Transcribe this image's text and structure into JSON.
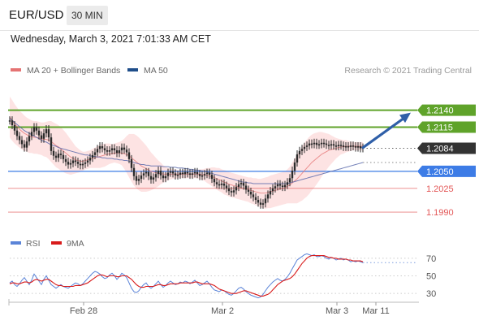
{
  "header": {
    "pair": "EUR/USD",
    "timeframe": "30 MIN",
    "timestamp": "Wednesday, March 3, 2021 7:01:33 AM CET"
  },
  "colors": {
    "price": "#2b2b2b",
    "ma20": "#e57373",
    "bollinger_fill": "#fde3e3",
    "ma50": "#5263a8",
    "resistance": "#5fa32a",
    "current_badge": "#333333",
    "support_blue": "#3d7ce6",
    "support_red": "#e35757",
    "arrow": "#2f5fa8",
    "rsi": "#5b84d8",
    "rsi_ma": "#d81b1b",
    "grid_dots": "#cccccc"
  },
  "chart_data": [
    {
      "type": "line",
      "panel": "price",
      "legend": [
        {
          "name": "MA 20 + Bollinger Bands",
          "color": "#e57373"
        },
        {
          "name": "MA 50",
          "color": "#1f4e8a"
        }
      ],
      "credit": "Research © 2021 Trading Central",
      "legend_position": "top",
      "x_ticks": [
        {
          "label": "Feb 28",
          "index": 30
        },
        {
          "label": "Mar 2",
          "index": 87
        },
        {
          "label": "Mar 3",
          "index": 134
        },
        {
          "label": "Mar 11",
          "index": 150
        }
      ],
      "ylim": [
        1.1965,
        1.2185
      ],
      "price": [
        1.2125,
        1.2118,
        1.211,
        1.2102,
        1.2096,
        1.209,
        1.2085,
        1.2094,
        1.2102,
        1.2108,
        1.2115,
        1.211,
        1.2103,
        1.2098,
        1.2106,
        1.2112,
        1.21,
        1.208,
        1.2073,
        1.207,
        1.2076,
        1.2074,
        1.2068,
        1.2064,
        1.206,
        1.2062,
        1.2066,
        1.2064,
        1.2061,
        1.2059,
        1.2061,
        1.2063,
        1.2066,
        1.207,
        1.2074,
        1.2078,
        1.2083,
        1.2087,
        1.2084,
        1.2081,
        1.2079,
        1.2081,
        1.2084,
        1.2081,
        1.2077,
        1.2081,
        1.2085,
        1.2082,
        1.2078,
        1.2068,
        1.2055,
        1.2043,
        1.2036,
        1.2039,
        1.2044,
        1.2047,
        1.2049,
        1.2043,
        1.2038,
        1.2041,
        1.2046,
        1.2051,
        1.2044,
        1.204,
        1.2043,
        1.2048,
        1.205,
        1.2047,
        1.2044,
        1.2045,
        1.2048,
        1.2046,
        1.2049,
        1.2047,
        1.2045,
        1.2047,
        1.2049,
        1.2046,
        1.2043,
        1.2044,
        1.2046,
        1.2048,
        1.2045,
        1.2039,
        1.2034,
        1.2031,
        1.203,
        1.2032,
        1.2029,
        1.2025,
        1.2021,
        1.2019,
        1.2022,
        1.2027,
        1.2031,
        1.2033,
        1.2029,
        1.2023,
        1.202,
        1.2016,
        1.2012,
        1.2008,
        1.2004,
        1.2001,
        1.2003,
        1.201,
        1.2016,
        1.2021,
        1.2025,
        1.2028,
        1.2031,
        1.2029,
        1.2027,
        1.203,
        1.2034,
        1.204,
        1.2051,
        1.2063,
        1.2075,
        1.208,
        1.2083,
        1.2086,
        1.2088,
        1.2091,
        1.209,
        1.2092,
        1.2089,
        1.209,
        1.2092,
        1.2091,
        1.2089,
        1.2088,
        1.209,
        1.2088,
        1.2087,
        1.2089,
        1.2088,
        1.2086,
        1.2087,
        1.2086,
        1.2088,
        1.2087,
        1.2085,
        1.2087,
        1.2084,
        1.2085
      ],
      "ma20": [
        1.213,
        1.2125,
        1.212,
        1.2116,
        1.2112,
        1.2109,
        1.2106,
        1.2104,
        1.2102,
        1.2101,
        1.21,
        1.21,
        1.2099,
        1.2098,
        1.2097,
        1.2097,
        1.2096,
        1.2094,
        1.2091,
        1.2088,
        1.2086,
        1.2083,
        1.208,
        1.2077,
        1.2074,
        1.2071,
        1.2069,
        1.2067,
        1.2066,
        1.2065,
        1.2065,
        1.2066,
        1.2067,
        1.2068,
        1.2069,
        1.207,
        1.2071,
        1.2072,
        1.2073,
        1.2074,
        1.2075,
        1.2076,
        1.2076,
        1.2077,
        1.2077,
        1.2077,
        1.2077,
        1.2076,
        1.2075,
        1.2073,
        1.207,
        1.2067,
        1.2064,
        1.2061,
        1.2058,
        1.2056,
        1.2054,
        1.2052,
        1.205,
        1.2049,
        1.2048,
        1.2047,
        1.2047,
        1.2046,
        1.2046,
        1.2046,
        1.2046,
        1.2046,
        1.2046,
        1.2046,
        1.2046,
        1.2046,
        1.2046,
        1.2046,
        1.2046,
        1.2046,
        1.2046,
        1.2046,
        1.2046,
        1.2045,
        1.2045,
        1.2044,
        1.2043,
        1.2042,
        1.2041,
        1.2039,
        1.2038,
        1.2036,
        1.2034,
        1.2033,
        1.2031,
        1.203,
        1.2029,
        1.2028,
        1.2027,
        1.2026,
        1.2025,
        1.2024,
        1.2023,
        1.2022,
        1.2021,
        1.202,
        1.2019,
        1.2018,
        1.2018,
        1.2018,
        1.2019,
        1.202,
        1.2021,
        1.2022,
        1.2023,
        1.2024,
        1.2025,
        1.2026,
        1.2028,
        1.203,
        1.2033,
        1.2036,
        1.2039,
        1.2043,
        1.2047,
        1.2051,
        1.2055,
        1.2059,
        1.2063,
        1.2066,
        1.2069,
        1.2072,
        1.2075,
        1.2077,
        1.2079,
        1.2081,
        1.2082,
        1.2083,
        1.2084,
        1.2085,
        1.2086,
        1.2086,
        1.2087,
        1.2087,
        1.2087,
        1.2087,
        1.2087,
        1.2087,
        1.2087,
        1.2087
      ],
      "bb_width": [
        0.003,
        0.003,
        0.0029,
        0.0028,
        0.0027,
        0.0027,
        0.0026,
        0.0025,
        0.0025,
        0.0024,
        0.0024,
        0.0024,
        0.0024,
        0.0024,
        0.0025,
        0.0026,
        0.0028,
        0.003,
        0.0031,
        0.0032,
        0.0032,
        0.0032,
        0.0031,
        0.003,
        0.0028,
        0.0026,
        0.0023,
        0.002,
        0.0018,
        0.0016,
        0.0014,
        0.0013,
        0.0013,
        0.0013,
        0.0014,
        0.0015,
        0.0016,
        0.0017,
        0.0017,
        0.0017,
        0.0016,
        0.0015,
        0.0014,
        0.0014,
        0.0015,
        0.0016,
        0.0018,
        0.0022,
        0.0027,
        0.0032,
        0.0035,
        0.0038,
        0.0039,
        0.0039,
        0.0038,
        0.0036,
        0.0034,
        0.0031,
        0.0028,
        0.0025,
        0.0022,
        0.0019,
        0.0016,
        0.0013,
        0.0011,
        0.0009,
        0.0008,
        0.0007,
        0.0007,
        0.0006,
        0.0006,
        0.0006,
        0.0006,
        0.0006,
        0.0006,
        0.0006,
        0.0006,
        0.0006,
        0.0007,
        0.0008,
        0.0009,
        0.0011,
        0.0012,
        0.0014,
        0.0015,
        0.0016,
        0.0017,
        0.0017,
        0.0018,
        0.0018,
        0.0018,
        0.0018,
        0.0018,
        0.0018,
        0.0018,
        0.0018,
        0.0018,
        0.0018,
        0.0018,
        0.0019,
        0.0019,
        0.002,
        0.002,
        0.0021,
        0.0022,
        0.0023,
        0.0023,
        0.0024,
        0.0024,
        0.0024,
        0.0024,
        0.0024,
        0.0024,
        0.0024,
        0.0025,
        0.0027,
        0.003,
        0.0033,
        0.0036,
        0.0038,
        0.004,
        0.0041,
        0.0042,
        0.0042,
        0.0041,
        0.004,
        0.0038,
        0.0036,
        0.0033,
        0.003,
        0.0027,
        0.0024,
        0.0021,
        0.0018,
        0.0015,
        0.0013,
        0.0011,
        0.001,
        0.0009,
        0.0008,
        0.0007,
        0.0006,
        0.0006,
        0.0006,
        0.0006,
        0.0006,
        0.0006
      ],
      "ma50": [
        1.2128,
        1.2125,
        1.2122,
        1.2119,
        1.2116,
        1.2113,
        1.211,
        1.2108,
        1.2106,
        1.2104,
        1.2102,
        1.21,
        1.2098,
        1.2096,
        1.2094,
        1.2093,
        1.2091,
        1.2089,
        1.2088,
        1.2087,
        1.2085,
        1.2084,
        1.2083,
        1.2082,
        1.2081,
        1.208,
        1.2079,
        1.2078,
        1.2077,
        1.2076,
        1.2075,
        1.2074,
        1.2074,
        1.2073,
        1.2072,
        1.2072,
        1.2071,
        1.2071,
        1.207,
        1.207,
        1.2069,
        1.2069,
        1.2069,
        1.2068,
        1.2068,
        1.2067,
        1.2067,
        1.2066,
        1.2066,
        1.2065,
        1.2064,
        1.2063,
        1.2062,
        1.2061,
        1.206,
        1.206,
        1.2059,
        1.2059,
        1.2058,
        1.2058,
        1.2058,
        1.2058,
        1.2058,
        1.2057,
        1.2057,
        1.2057,
        1.2056,
        1.2056,
        1.2056,
        1.2055,
        1.2055,
        1.2055,
        1.2054,
        1.2054,
        1.2053,
        1.2053,
        1.2052,
        1.2052,
        1.2051,
        1.2051,
        1.205,
        1.2049,
        1.2048,
        1.2047,
        1.2046,
        1.2045,
        1.2044,
        1.2043,
        1.2042,
        1.2041,
        1.204,
        1.2039,
        1.2038,
        1.2037,
        1.2036,
        1.2035,
        1.2034,
        1.2034,
        1.2033,
        1.2033,
        1.2032,
        1.2032,
        1.2032,
        1.2032,
        1.2032,
        1.2032,
        1.2032,
        1.2032,
        1.2032,
        1.2032,
        1.2032,
        1.2032,
        1.2032,
        1.2032,
        1.2032,
        1.2033,
        1.2034,
        1.2035,
        1.2036,
        1.2037,
        1.2038,
        1.2039,
        1.204,
        1.2041,
        1.2042,
        1.2043,
        1.2044,
        1.2045,
        1.2046,
        1.2047,
        1.2048,
        1.2049,
        1.205,
        1.2051,
        1.2052,
        1.2053,
        1.2054,
        1.2055,
        1.2056,
        1.2057,
        1.2058,
        1.2059,
        1.206,
        1.2061,
        1.2062,
        1.2063
      ],
      "levels": [
        {
          "label": "1.2140",
          "value": 1.214,
          "kind": "resistance"
        },
        {
          "label": "1.2115",
          "value": 1.2115,
          "kind": "resistance"
        },
        {
          "label": "1.2084",
          "value": 1.2084,
          "kind": "current"
        },
        {
          "label": "1.2050",
          "value": 1.205,
          "kind": "pivot"
        },
        {
          "label": "1.2025",
          "value": 1.2025,
          "kind": "support"
        },
        {
          "label": "1.1990",
          "value": 1.199,
          "kind": "support"
        }
      ],
      "projection": {
        "from_index": 144,
        "from_value": 1.2084,
        "to_index": 160,
        "to_value": 1.214
      }
    },
    {
      "type": "line",
      "panel": "rsi",
      "legend": [
        {
          "name": "RSI",
          "color": "#5b84d8"
        },
        {
          "name": "9MA",
          "color": "#d81b1b"
        }
      ],
      "y_ticks": [
        70,
        50,
        30
      ],
      "ylim": [
        20,
        80
      ],
      "rsi": [
        42,
        44,
        40,
        38,
        41,
        45,
        48,
        44,
        40,
        45,
        52,
        48,
        44,
        40,
        46,
        50,
        45,
        40,
        38,
        36,
        38,
        40,
        38,
        37,
        36,
        38,
        40,
        42,
        41,
        39,
        41,
        44,
        47,
        50,
        53,
        55,
        54,
        52,
        49,
        47,
        48,
        51,
        53,
        50,
        46,
        49,
        53,
        51,
        48,
        42,
        36,
        32,
        31,
        33,
        37,
        40,
        42,
        38,
        36,
        38,
        41,
        44,
        40,
        37,
        39,
        42,
        44,
        42,
        40,
        41,
        43,
        42,
        44,
        43,
        41,
        43,
        45,
        42,
        39,
        40,
        42,
        44,
        41,
        37,
        34,
        33,
        32,
        34,
        33,
        31,
        29,
        28,
        30,
        33,
        36,
        37,
        35,
        32,
        30,
        28,
        27,
        26,
        25,
        26,
        29,
        33,
        37,
        40,
        43,
        45,
        47,
        45,
        44,
        46,
        49,
        53,
        58,
        63,
        68,
        70,
        72,
        74,
        75,
        74,
        73,
        74,
        72,
        72,
        73,
        72,
        70,
        69,
        71,
        70,
        68,
        69,
        70,
        68,
        69,
        68,
        66,
        67,
        66,
        67,
        66,
        65
      ],
      "rsi_ma": [
        41,
        42,
        42,
        41,
        41,
        42,
        43,
        43,
        42,
        43,
        45,
        46,
        45,
        44,
        45,
        46,
        46,
        44,
        42,
        40,
        39,
        39,
        38,
        38,
        38,
        38,
        38,
        39,
        39,
        39,
        40,
        41,
        42,
        44,
        46,
        48,
        50,
        51,
        51,
        50,
        49,
        50,
        50,
        50,
        49,
        49,
        50,
        50,
        50,
        48,
        46,
        43,
        40,
        38,
        37,
        37,
        38,
        38,
        38,
        38,
        39,
        40,
        40,
        39,
        39,
        40,
        41,
        41,
        41,
        41,
        42,
        42,
        42,
        42,
        42,
        42,
        43,
        43,
        42,
        41,
        41,
        41,
        41,
        40,
        39,
        37,
        35,
        34,
        33,
        32,
        31,
        30,
        30,
        30,
        31,
        32,
        33,
        33,
        32,
        31,
        30,
        29,
        28,
        27,
        27,
        28,
        29,
        31,
        34,
        37,
        40,
        42,
        44,
        45,
        46,
        47,
        49,
        52,
        56,
        60,
        64,
        67,
        70,
        72,
        73,
        73,
        73,
        73,
        73,
        73,
        72,
        71,
        71,
        70,
        70,
        69,
        69,
        69,
        69,
        68,
        68,
        67,
        67,
        67,
        67,
        66
      ]
    }
  ]
}
